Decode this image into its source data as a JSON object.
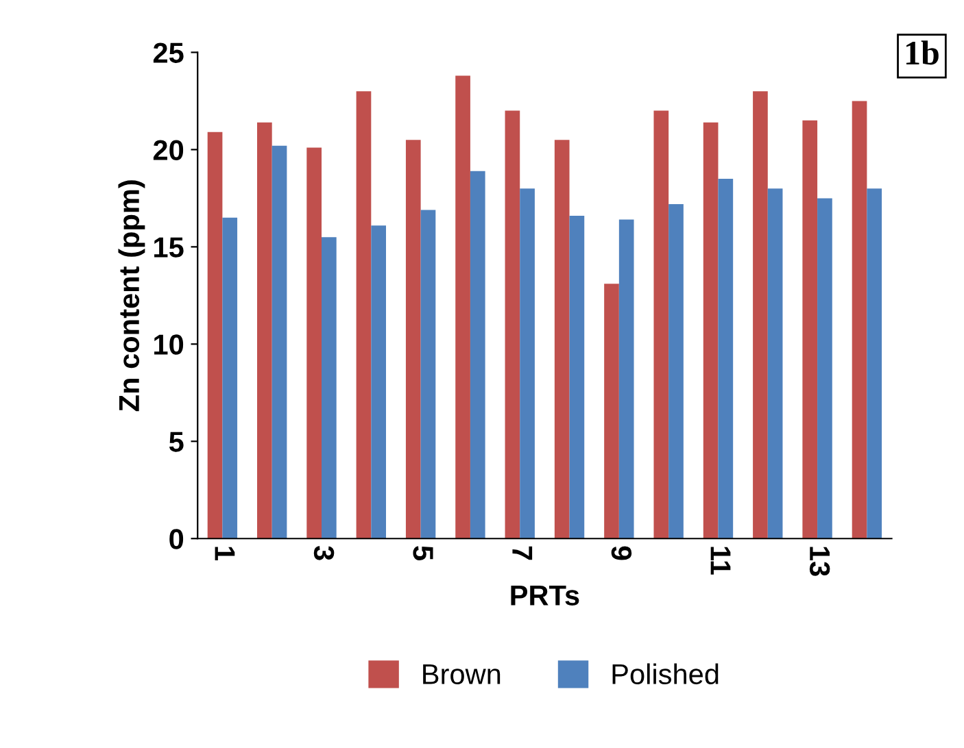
{
  "chart_data": {
    "type": "bar",
    "xlabel": "PRTs",
    "ylabel": "Zn content (ppm)",
    "categories": [
      "1",
      null,
      "3",
      null,
      "5",
      null,
      "7",
      null,
      "9",
      null,
      "11",
      null,
      "13",
      null
    ],
    "series": [
      {
        "name": "Brown",
        "color": "#c0504d",
        "values": [
          20.9,
          21.4,
          20.1,
          23.0,
          20.5,
          23.8,
          22.0,
          20.5,
          13.1,
          22.0,
          21.4,
          23.0,
          21.5,
          22.5
        ]
      },
      {
        "name": "Polished",
        "color": "#4f81bd",
        "values": [
          16.5,
          20.2,
          15.5,
          16.1,
          16.9,
          18.9,
          18.0,
          16.6,
          16.4,
          17.2,
          18.5,
          18.0,
          17.5,
          18.0
        ]
      }
    ],
    "ylim": [
      0,
      25
    ],
    "yticks": [
      0,
      5,
      10,
      15,
      20,
      25
    ],
    "grid": false,
    "legend": "bottom",
    "annotations": [
      "1b"
    ]
  }
}
